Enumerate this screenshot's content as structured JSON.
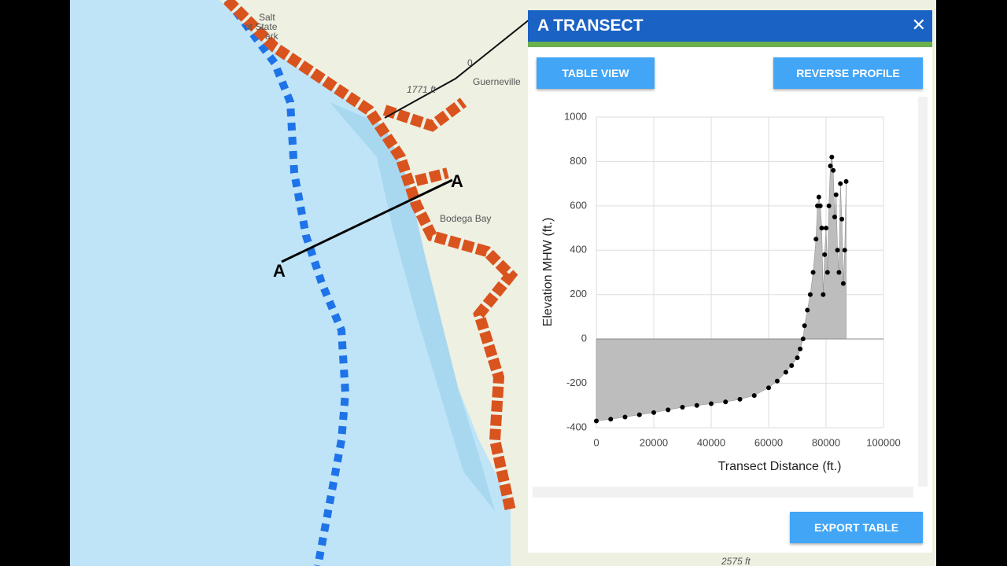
{
  "map": {
    "labels": [
      "Salt",
      "nt State",
      "ark",
      "Guerneville",
      "1771 ft",
      "0",
      "Bodega Bay",
      "A",
      "A",
      "2575 ft"
    ]
  },
  "panel": {
    "title": "A TRANSECT",
    "buttons": [
      "TABLE VIEW",
      "REVERSE PROFILE",
      "EXPORT TABLE"
    ]
  },
  "chart_data": {
    "type": "area",
    "x_label": "Transect Distance (ft.)",
    "y_label": "Elevation MHW (ft.)",
    "x": [
      0,
      5000,
      10000,
      15000,
      20000,
      25000,
      30000,
      35000,
      40000,
      45000,
      50000,
      55000,
      60000,
      63000,
      66000,
      68000,
      70000,
      71000,
      72000,
      72500,
      73500,
      74500,
      75500,
      76500,
      77000,
      77500,
      78000,
      78500,
      79000,
      79500,
      80000,
      80500,
      81000,
      81500,
      82000,
      82500,
      83000,
      83500,
      84000,
      84500,
      85000,
      85500,
      86000,
      86500,
      87000
    ],
    "values": [
      -370,
      -362,
      -352,
      -342,
      -332,
      -320,
      -308,
      -300,
      -292,
      -284,
      -272,
      -255,
      -220,
      -190,
      -150,
      -120,
      -85,
      -45,
      0,
      60,
      130,
      200,
      300,
      450,
      600,
      640,
      600,
      500,
      200,
      380,
      500,
      300,
      600,
      780,
      820,
      760,
      550,
      650,
      400,
      300,
      700,
      540,
      250,
      400,
      710
    ],
    "color": "#000000",
    "fill": "#bdbdbd",
    "xlim": [
      0,
      100000
    ],
    "xticks": [
      0,
      20000,
      40000,
      60000,
      80000,
      100000
    ],
    "ylim": [
      -400,
      1000
    ],
    "yticks": [
      -400,
      -200,
      0,
      200,
      400,
      600,
      800,
      1000
    ],
    "grid": true
  }
}
